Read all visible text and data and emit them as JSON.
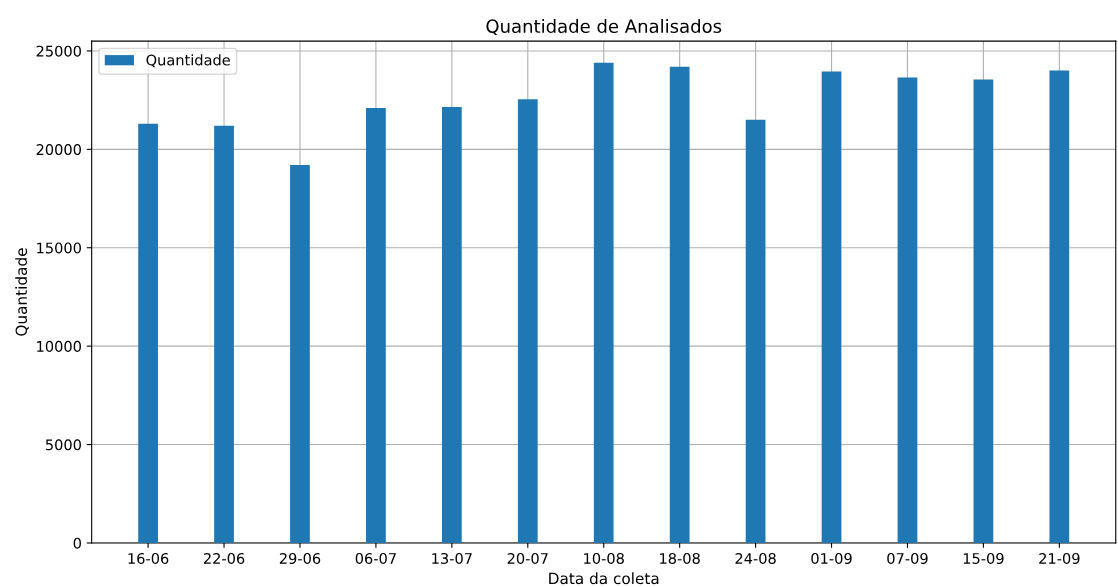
{
  "chart_data": {
    "type": "bar",
    "title": "Quantidade de Analisados",
    "xlabel": "Data da coleta",
    "ylabel": "Quantidade",
    "categories": [
      "16-06",
      "22-06",
      "29-06",
      "06-07",
      "13-07",
      "20-07",
      "10-08",
      "18-08",
      "24-08",
      "01-09",
      "07-09",
      "15-09",
      "21-09"
    ],
    "series": [
      {
        "name": "Quantidade",
        "color": "#1f77b4",
        "values": [
          21300,
          21200,
          19200,
          22100,
          22150,
          22550,
          24400,
          24200,
          21500,
          23950,
          23650,
          23550,
          24000
        ]
      }
    ],
    "ylim": [
      0,
      25500
    ],
    "yticks": [
      0,
      5000,
      10000,
      15000,
      20000,
      25000
    ],
    "grid": true,
    "legend": "top left"
  }
}
